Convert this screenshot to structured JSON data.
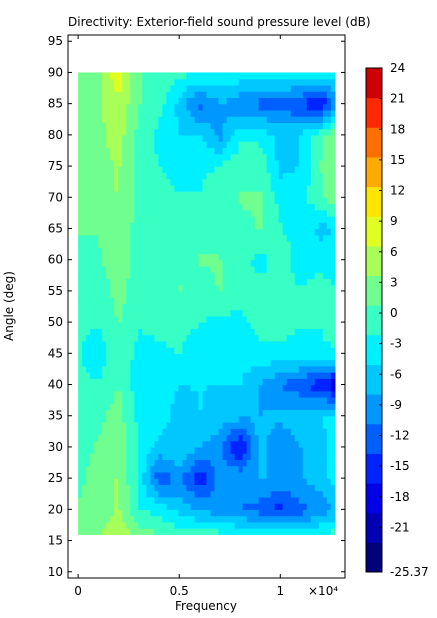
{
  "chart_data": {
    "type": "heatmap",
    "subtype": "filled-contour",
    "title": "Directivity: Exterior-field sound pressure level (dB)",
    "xlabel": "Frequency",
    "ylabel": "Angle (deg)",
    "x_multiplier_label": "×10⁴",
    "xlim": [
      -500,
      13200
    ],
    "ylim": [
      9,
      96
    ],
    "x_ticks": [
      0,
      5000,
      10000
    ],
    "x_tick_labels": [
      "0",
      "0.5",
      "1"
    ],
    "y_ticks": [
      10,
      15,
      20,
      25,
      30,
      35,
      40,
      45,
      50,
      55,
      60,
      65,
      70,
      75,
      80,
      85,
      90,
      95
    ],
    "y_tick_labels": [
      "10",
      "15",
      "20",
      "25",
      "30",
      "35",
      "40",
      "45",
      "50",
      "55",
      "60",
      "65",
      "70",
      "75",
      "80",
      "85",
      "90",
      "95"
    ],
    "data_extent": {
      "x": [
        0,
        12700
      ],
      "y": [
        16,
        90
      ]
    },
    "grid": false,
    "colormap": "rainbow",
    "colorbar": {
      "position": "right",
      "ticks": [
        24,
        21,
        18,
        15,
        12,
        9,
        6,
        3,
        0,
        -3,
        -6,
        -9,
        -12,
        -15,
        -18,
        -21,
        -25.37
      ],
      "tick_labels": [
        "24",
        "21",
        "18",
        "15",
        "12",
        "9",
        "6",
        "3",
        "0",
        "-3",
        "-6",
        "-9",
        "-12",
        "-15",
        "-18",
        "-21",
        "-25.37"
      ],
      "min": -25.37,
      "max": 24,
      "levels": 17,
      "colors": [
        "#00007a",
        "#0000b4",
        "#0000e6",
        "#0024ff",
        "#0060ff",
        "#0098ff",
        "#00c8ff",
        "#00f0ff",
        "#38ffc4",
        "#70ff8e",
        "#a8ff58",
        "#e0ff20",
        "#ffe400",
        "#ffaa00",
        "#ff6e00",
        "#ff2800",
        "#cc0000"
      ]
    },
    "values_z_db": {
      "x": [
        0,
        1000,
        2000,
        3000,
        4000,
        5000,
        6000,
        7000,
        8000,
        9000,
        10000,
        11000,
        12000,
        12700
      ],
      "y": [
        16,
        20,
        25,
        30,
        35,
        40,
        45,
        50,
        55,
        60,
        65,
        70,
        75,
        80,
        85,
        90
      ],
      "z": [
        [
          2,
          3,
          6,
          2,
          1,
          -1,
          -1,
          -1,
          -2,
          -3,
          -3,
          -3,
          -2,
          -1
        ],
        [
          1,
          2,
          4,
          -2,
          -3,
          -6,
          -8,
          -10,
          -11,
          -12,
          -15,
          -12,
          -10,
          -8
        ],
        [
          0,
          2,
          4,
          -3,
          -13,
          -10,
          -16,
          -10,
          -8,
          -8,
          -8,
          -8,
          -6,
          -4
        ],
        [
          0,
          1,
          3,
          -2,
          -6,
          -5,
          -8,
          -10,
          -18,
          -6,
          -11,
          -8,
          -6,
          -4
        ],
        [
          -1,
          0,
          2,
          -3,
          -4,
          -6,
          -5,
          -6,
          -7,
          -8,
          -7,
          -6,
          -5,
          -4
        ],
        [
          -1,
          -2,
          1,
          -4,
          -4,
          -5,
          -5,
          -5,
          -5,
          -8,
          -11,
          -13,
          -16,
          -19
        ],
        [
          -2,
          -4,
          0,
          -3,
          -3,
          -2,
          -4,
          -5,
          -4,
          -3,
          -3,
          -3,
          -3,
          -3
        ],
        [
          -1,
          -2,
          1,
          -2,
          -1,
          -1,
          -2,
          -3,
          -3,
          -1,
          -1,
          -2,
          -2,
          1
        ],
        [
          0,
          -1,
          2,
          -1,
          -1,
          1,
          -1,
          1,
          -1,
          -1,
          -2,
          -2,
          -1,
          -2
        ],
        [
          0,
          0,
          3,
          -1,
          -1,
          0,
          1,
          1,
          -1,
          -3,
          -1,
          -3,
          -3,
          -3
        ],
        [
          1,
          1,
          4,
          -1,
          -1,
          -2,
          -1,
          -1,
          0,
          1,
          -2,
          -3,
          -6,
          -5
        ],
        [
          1,
          1,
          4,
          0,
          -1,
          -2,
          -2,
          0,
          1,
          1,
          -3,
          -3,
          0,
          3
        ],
        [
          1,
          2,
          4,
          0,
          -2,
          -3,
          -3,
          -2,
          0,
          0,
          -6,
          -5,
          1,
          1
        ],
        [
          2,
          3,
          5,
          0,
          -3,
          -5,
          -5,
          -9,
          -3,
          -3,
          -6,
          -5,
          0,
          3
        ],
        [
          2,
          3,
          6,
          1,
          -1,
          -6,
          -12,
          -8,
          -10,
          -12,
          -12,
          -14,
          -17,
          -10
        ],
        [
          2,
          3,
          9,
          1,
          0,
          -1,
          -2,
          -2,
          -3,
          -3,
          -3,
          -3,
          -3,
          -3
        ]
      ]
    }
  }
}
